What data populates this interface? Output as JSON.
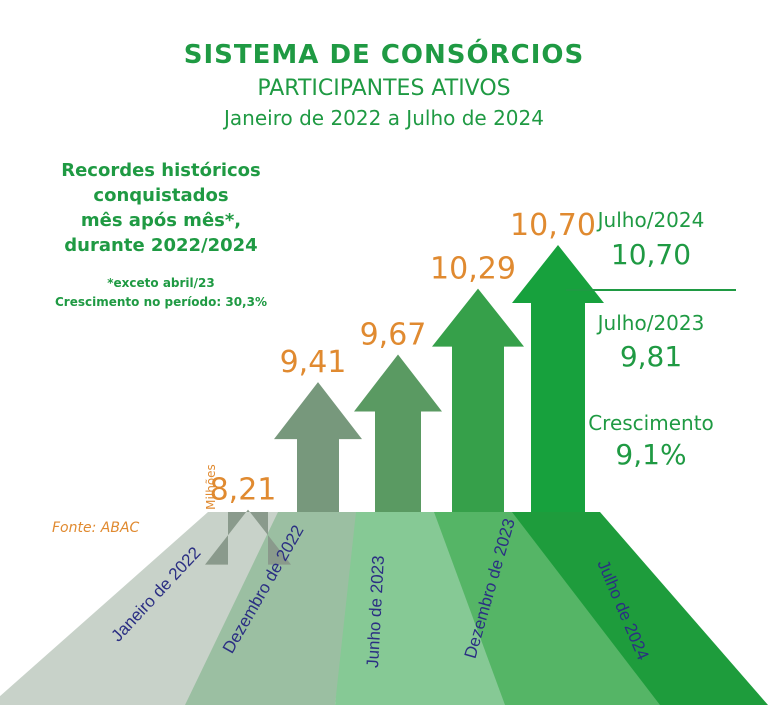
{
  "header": {
    "title": "SISTEMA DE CONSÓRCIOS",
    "subtitle": "PARTICIPANTES ATIVOS",
    "period": "Janeiro de 2022 a Julho de 2024"
  },
  "records": {
    "line1": "Recordes históricos",
    "line2": "conquistados",
    "line3": "mês após mês*,",
    "line4": "durante 2022/2024",
    "footnote": "*exceto abril/23",
    "growth_note": "Crescimento no período: 30,3%"
  },
  "summary": {
    "current_label": "Julho/2024",
    "current_value": "10,70",
    "previous_label": "Julho/2023",
    "previous_value": "9,81",
    "growth_label": "Crescimento",
    "growth_value": "9,1%"
  },
  "source": "Fonte: ABAC",
  "colors": {
    "title_green": "#1f9a43",
    "value_orange": "#e08a30",
    "axis_label_navy": "#2b2f83",
    "arrows": [
      "#8a9a8c",
      "#77987c",
      "#5a9a62",
      "#36a04a",
      "#17a13d"
    ]
  },
  "chart_data": {
    "type": "bar",
    "style": "arrows",
    "unit_label": "Milhões",
    "categories": [
      "Janeiro de 2022",
      "Dezembro de 2022",
      "Junho de 2023",
      "Dezembro de 2023",
      "Julho de 2024"
    ],
    "values": [
      8.21,
      9.41,
      9.67,
      10.29,
      10.7
    ],
    "value_labels": [
      "8,21",
      "9,41",
      "9,67",
      "10,29",
      "10,70"
    ],
    "title": "SISTEMA DE CONSÓRCIOS",
    "xlabel": "",
    "ylabel": "Milhões",
    "ylim": [
      7.5,
      11.0
    ]
  }
}
